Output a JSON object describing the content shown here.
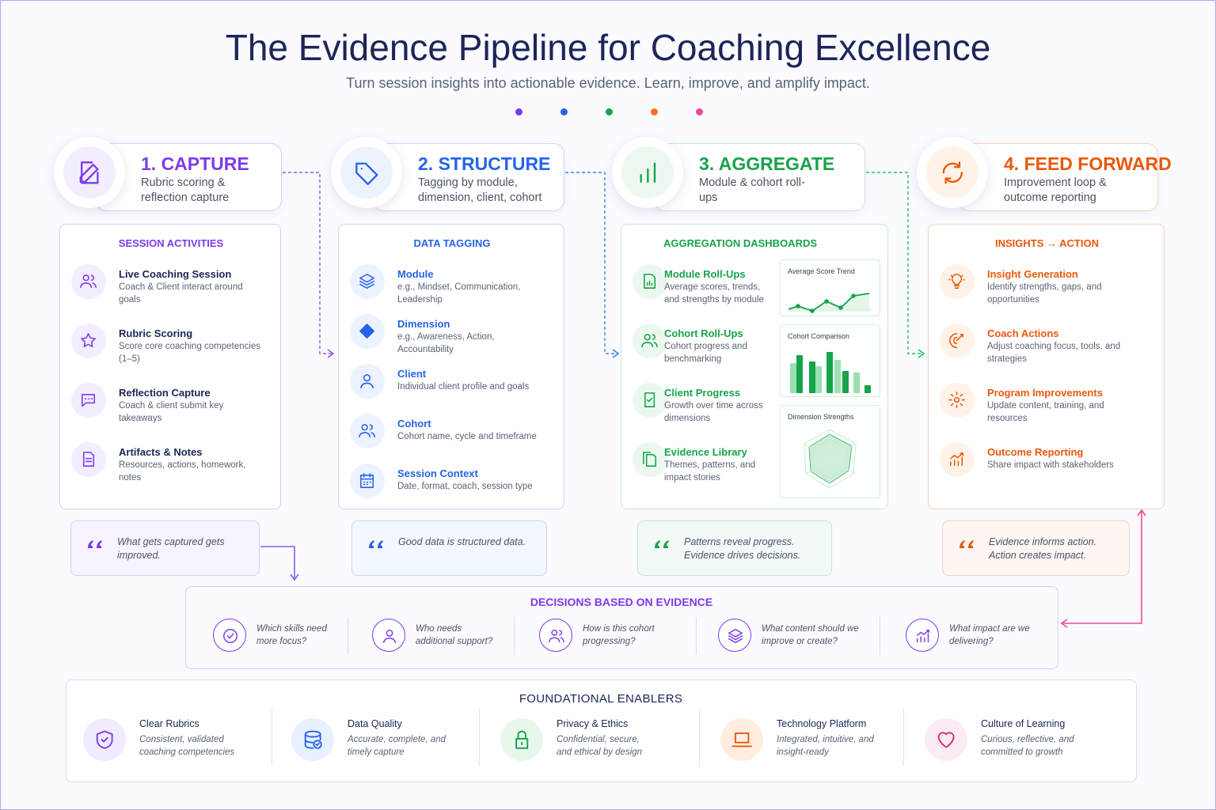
{
  "header": {
    "title": "The Evidence Pipeline for Coaching Excellence",
    "subtitle": "Turn session insights into actionable evidence. Learn, improve, and amplify impact."
  },
  "stages": [
    {
      "title": "1. CAPTURE",
      "description": "Rubric scoring & reflection capture",
      "panel_title": "SESSION ACTIVITIES",
      "items": [
        {
          "title": "Live Coaching Session",
          "text": "Coach & Client interact around goals"
        },
        {
          "title": "Rubric Scoring",
          "text": "Score core coaching competencies (1–5)"
        },
        {
          "title": "Reflection Capture",
          "text": "Coach & client submit key takeaways"
        },
        {
          "title": "Artifacts & Notes",
          "text": "Resources, actions, homework, notes"
        }
      ],
      "quote": "What gets captured gets improved."
    },
    {
      "title": "2. STRUCTURE",
      "description": "Tagging by module, dimension, client, cohort",
      "panel_title": "DATA TAGGING",
      "items": [
        {
          "title": "Module",
          "text": "e.g., Mindset, Communication, Leadership"
        },
        {
          "title": "Dimension",
          "text": "e.g., Awareness, Action, Accountability"
        },
        {
          "title": "Client",
          "text": "Individual client profile and goals"
        },
        {
          "title": "Cohort",
          "text": "Cohort name, cycle and timeframe"
        },
        {
          "title": "Session Context",
          "text": "Date, format, coach, session type"
        }
      ],
      "quote": "Good data is structured data."
    },
    {
      "title": "3. AGGREGATE",
      "description": "Module & cohort roll-ups",
      "panel_title": "AGGREGATION DASHBOARDS",
      "items": [
        {
          "title": "Module Roll-Ups",
          "text": "Average scores, trends, and strengths by module"
        },
        {
          "title": "Cohort Roll-Ups",
          "text": "Cohort progress and benchmarking"
        },
        {
          "title": "Client Progress",
          "text": "Growth over time across dimensions"
        },
        {
          "title": "Evidence Library",
          "text": "Themes, patterns, and impact stories"
        }
      ],
      "dashboards": [
        "Average Score Trend",
        "Cohort Comparison",
        "Dimension Strengths"
      ],
      "quote": "Patterns reveal progress. Evidence drives decisions."
    },
    {
      "title": "4. FEED FORWARD",
      "description": "Improvement loop & outcome reporting",
      "panel_title": "INSIGHTS → ACTION",
      "items": [
        {
          "title": "Insight Generation",
          "text": "Identify strengths, gaps, and opportunities"
        },
        {
          "title": "Coach Actions",
          "text": "Adjust coaching focus, tools, and strategies"
        },
        {
          "title": "Program Improvements",
          "text": "Update content, training, and resources"
        },
        {
          "title": "Outcome Reporting",
          "text": "Share impact with stakeholders"
        }
      ],
      "quote": "Evidence informs action. Action creates impact."
    }
  ],
  "decisions": {
    "title": "DECISIONS BASED ON EVIDENCE",
    "questions": [
      "Which skills need more focus?",
      "Who needs additional support?",
      "How is this cohort progressing?",
      "What content should we improve or create?",
      "What impact are we delivering?"
    ]
  },
  "enablers": {
    "title": "FOUNDATIONAL ENABLERS",
    "items": [
      {
        "title": "Clear Rubrics",
        "text": "Consistent, validated coaching competencies"
      },
      {
        "title": "Data Quality",
        "text": "Accurate, complete, and timely capture"
      },
      {
        "title": "Privacy & Ethics",
        "text": "Confidential, secure, and ethical by design"
      },
      {
        "title": "Technology Platform",
        "text": "Integrated, intuitive, and insight-ready"
      },
      {
        "title": "Culture of Learning",
        "text": "Curious, reflective, and committed to growth"
      }
    ]
  }
}
